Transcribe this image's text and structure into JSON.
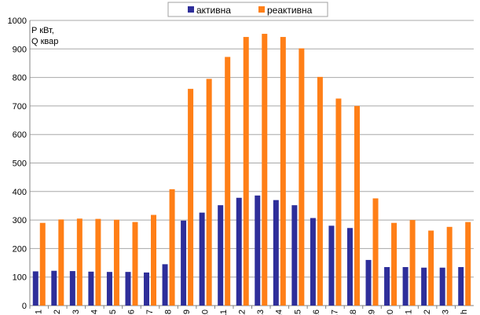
{
  "chart_data": {
    "type": "bar",
    "title": "",
    "xlabel": "",
    "ylabel": "",
    "y_unit_lines": [
      "P кВт,",
      "Q квар"
    ],
    "ylim": [
      0,
      1000
    ],
    "yticks": [
      0,
      100,
      200,
      300,
      400,
      500,
      600,
      700,
      800,
      900,
      1000
    ],
    "grid": true,
    "legend_position": "top-center",
    "categories": [
      "1",
      "2",
      "3",
      "4",
      "5",
      "6",
      "7",
      "8",
      "9",
      "10",
      "11",
      "12",
      "13",
      "14",
      "15",
      "16",
      "17",
      "18",
      "19",
      "20",
      "21",
      "22",
      "23",
      "24, h"
    ],
    "series": [
      {
        "name": "активна",
        "color": "#2e2e9a",
        "values": [
          120,
          122,
          121,
          119,
          118,
          118,
          116,
          145,
          298,
          326,
          352,
          378,
          386,
          370,
          352,
          307,
          280,
          272,
          160,
          135,
          135,
          133,
          133,
          135
        ]
      },
      {
        "name": "реактивна",
        "color": "#ff7f17",
        "values": [
          290,
          302,
          305,
          304,
          301,
          293,
          318,
          408,
          760,
          795,
          872,
          942,
          953,
          942,
          902,
          802,
          726,
          700,
          376,
          290,
          300,
          263,
          276,
          293
        ]
      }
    ]
  }
}
